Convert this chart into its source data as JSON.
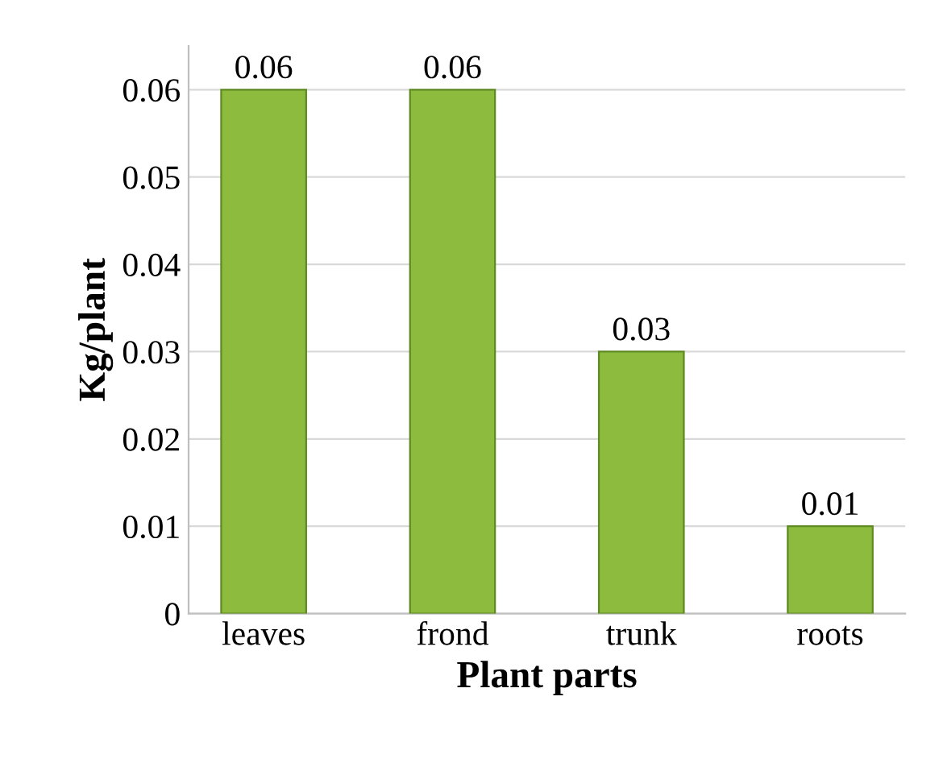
{
  "chart_data": {
    "type": "bar",
    "categories": [
      "leaves",
      "frond",
      "trunk",
      "roots"
    ],
    "values": [
      0.06,
      0.06,
      0.03,
      0.01
    ],
    "color": "#8dbb3e",
    "xlabel": "Plant parts",
    "ylabel": "Kg/plant",
    "ylim": [
      0,
      0.065
    ],
    "yticks": [
      0,
      0.01,
      0.02,
      0.03,
      0.04,
      0.05,
      0.06
    ],
    "grid": "y",
    "data_labels": true
  }
}
